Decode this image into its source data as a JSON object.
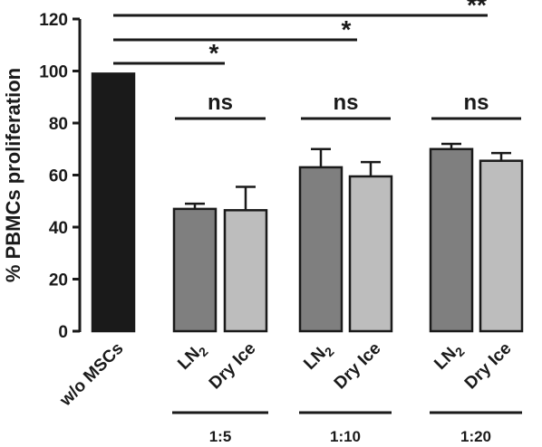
{
  "chart_data": {
    "type": "bar",
    "ylabel": "% PBMCs proliferation",
    "ylim": [
      0,
      120
    ],
    "yticks": [
      0,
      20,
      40,
      60,
      80,
      100,
      120
    ],
    "categories": [
      {
        "label": "w/o MSCs",
        "value": 99,
        "error": 0,
        "color": "#1a1a1a"
      },
      {
        "label": "LN2",
        "base": "LN",
        "sub": "2",
        "group": 0,
        "value": 47,
        "error": 2,
        "color": "#7f7f7f"
      },
      {
        "label": "Dry Ice",
        "group": 0,
        "value": 46.5,
        "error": 9,
        "color": "#bdbdbd"
      },
      {
        "label": "LN2",
        "base": "LN",
        "sub": "2",
        "group": 1,
        "value": 63,
        "error": 7,
        "color": "#7f7f7f"
      },
      {
        "label": "Dry Ice",
        "group": 1,
        "value": 59.5,
        "error": 5.5,
        "color": "#bdbdbd"
      },
      {
        "label": "LN2",
        "base": "LN",
        "sub": "2",
        "group": 2,
        "value": 70,
        "error": 2,
        "color": "#7f7f7f"
      },
      {
        "label": "Dry Ice",
        "group": 2,
        "value": 65.5,
        "error": 3,
        "color": "#bdbdbd"
      }
    ],
    "groups": [
      "1:5",
      "1:10",
      "1:20"
    ],
    "group_significance": [
      "ns",
      "ns",
      "ns"
    ],
    "comparisons": [
      {
        "from": "w/o MSCs",
        "to": "1:5",
        "label": "*"
      },
      {
        "from": "w/o MSCs",
        "to": "1:10",
        "label": "*"
      },
      {
        "from": "w/o MSCs",
        "to": "1:20",
        "label": "**"
      }
    ]
  }
}
